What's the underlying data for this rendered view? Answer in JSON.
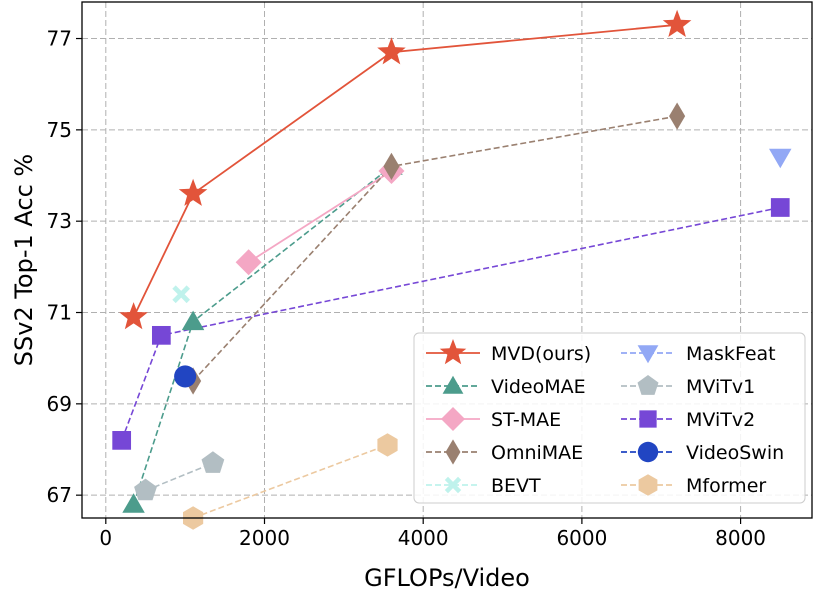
{
  "chart_data": {
    "type": "scatter",
    "xlabel": "GFLOPs/Video",
    "ylabel": "SSv2 Top-1 Acc %",
    "xlim": [
      -300,
      8900
    ],
    "ylim": [
      66.5,
      77.8
    ],
    "xticks": [
      0,
      2000,
      4000,
      6000,
      8000
    ],
    "yticks": [
      67,
      69,
      71,
      73,
      75,
      77
    ],
    "grid": true,
    "legend_position": "lower-right",
    "series": [
      {
        "name": "MVD(ours)",
        "color": "#e2543a",
        "marker": "star",
        "line": "solid",
        "x": [
          350,
          1100,
          3600,
          7200
        ],
        "y": [
          70.9,
          73.6,
          76.7,
          77.3
        ]
      },
      {
        "name": "VideoMAE",
        "color": "#4c9c8c",
        "marker": "triangle-up",
        "line": "dashed",
        "x": [
          350,
          1100,
          3600
        ],
        "y": [
          66.8,
          70.8,
          74.2
        ]
      },
      {
        "name": "ST-MAE",
        "color": "#f4a7c4",
        "marker": "diamond",
        "line": "solid",
        "x": [
          1800,
          3600
        ],
        "y": [
          72.1,
          74.1
        ]
      },
      {
        "name": "OmniMAE",
        "color": "#9a8070",
        "marker": "thin-diamond",
        "line": "dashed",
        "x": [
          1100,
          3600,
          7200
        ],
        "y": [
          69.5,
          74.2,
          75.3
        ]
      },
      {
        "name": "BEVT",
        "color": "#bff2ec",
        "marker": "x",
        "line": "none",
        "x": [
          950
        ],
        "y": [
          71.4
        ]
      },
      {
        "name": "MaskFeat",
        "color": "#92a8f5",
        "marker": "triangle-down",
        "line": "none",
        "x": [
          8500
        ],
        "y": [
          74.4
        ]
      },
      {
        "name": "MViTv1",
        "color": "#b2bec3",
        "marker": "pentagon",
        "line": "dashed",
        "x": [
          500,
          1350
        ],
        "y": [
          67.1,
          67.7
        ]
      },
      {
        "name": "MViTv2",
        "color": "#7647d6",
        "marker": "square",
        "line": "dashed",
        "x": [
          200,
          700,
          8500
        ],
        "y": [
          68.2,
          70.5,
          73.3
        ]
      },
      {
        "name": "VideoSwin",
        "color": "#2145c2",
        "marker": "circle",
        "line": "none",
        "x": [
          1000
        ],
        "y": [
          69.6
        ]
      },
      {
        "name": "Mformer",
        "color": "#ecc9a0",
        "marker": "hexagon",
        "line": "dashed",
        "x": [
          1100,
          3550
        ],
        "y": [
          66.5,
          68.1
        ]
      }
    ]
  }
}
